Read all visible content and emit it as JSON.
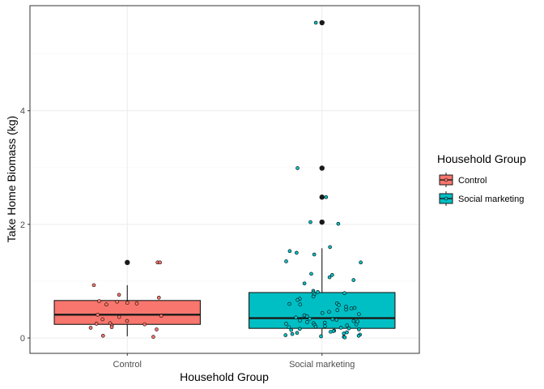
{
  "chart_data": {
    "type": "boxplot",
    "xlabel": "Household Group",
    "ylabel": "Take Home Biomass (kg)",
    "categories": [
      "Control",
      "Social marketing"
    ],
    "ylim": [
      -0.27,
      5.85
    ],
    "y_ticks": [
      0,
      2,
      4
    ],
    "grid": true,
    "legend": {
      "title": "Household Group",
      "position": "right",
      "entries": [
        "Control",
        "Social marketing"
      ]
    },
    "colors": {
      "Control": "#F8766D",
      "Social marketing": "#00BFC4",
      "outlier": "#1a1a1a",
      "grid_major": "#EBEBEB",
      "grid_minor": "#F5F5F5",
      "panel_border": "#333333"
    },
    "boxes": [
      {
        "group": "Control",
        "q1": 0.24,
        "median": 0.41,
        "q3": 0.66,
        "whisker_low": 0.03,
        "whisker_high": 0.93,
        "outliers": [
          1.33
        ]
      },
      {
        "group": "Social marketing",
        "q1": 0.17,
        "median": 0.35,
        "q3": 0.8,
        "whisker_low": 0.0,
        "whisker_high": 1.58,
        "outliers": [
          2.04,
          2.48,
          2.99,
          5.55
        ]
      }
    ],
    "points": [
      {
        "group": "Control",
        "values": [
          1.33,
          1.33,
          0.93,
          0.76,
          0.71,
          0.65,
          0.64,
          0.62,
          0.61,
          0.59,
          0.41,
          0.39,
          0.37,
          0.33,
          0.3,
          0.26,
          0.25,
          0.24,
          0.22,
          0.19,
          0.18,
          0.15,
          0.04,
          0.02
        ]
      },
      {
        "group": "Social marketing",
        "values": [
          5.55,
          2.99,
          2.48,
          2.04,
          2.01,
          1.6,
          1.53,
          1.5,
          1.47,
          1.35,
          1.33,
          1.13,
          1.11,
          1.07,
          1.02,
          0.96,
          0.83,
          0.81,
          0.8,
          0.79,
          0.77,
          0.73,
          0.69,
          0.67,
          0.61,
          0.6,
          0.59,
          0.58,
          0.55,
          0.53,
          0.52,
          0.5,
          0.49,
          0.46,
          0.44,
          0.42,
          0.4,
          0.38,
          0.36,
          0.34,
          0.33,
          0.32,
          0.31,
          0.3,
          0.29,
          0.28,
          0.27,
          0.26,
          0.25,
          0.24,
          0.23,
          0.22,
          0.21,
          0.2,
          0.19,
          0.18,
          0.17,
          0.16,
          0.15,
          0.14,
          0.13,
          0.12,
          0.11,
          0.1,
          0.09,
          0.08,
          0.07,
          0.06,
          0.05,
          0.04,
          0.03,
          0.02,
          0.01
        ]
      }
    ]
  }
}
